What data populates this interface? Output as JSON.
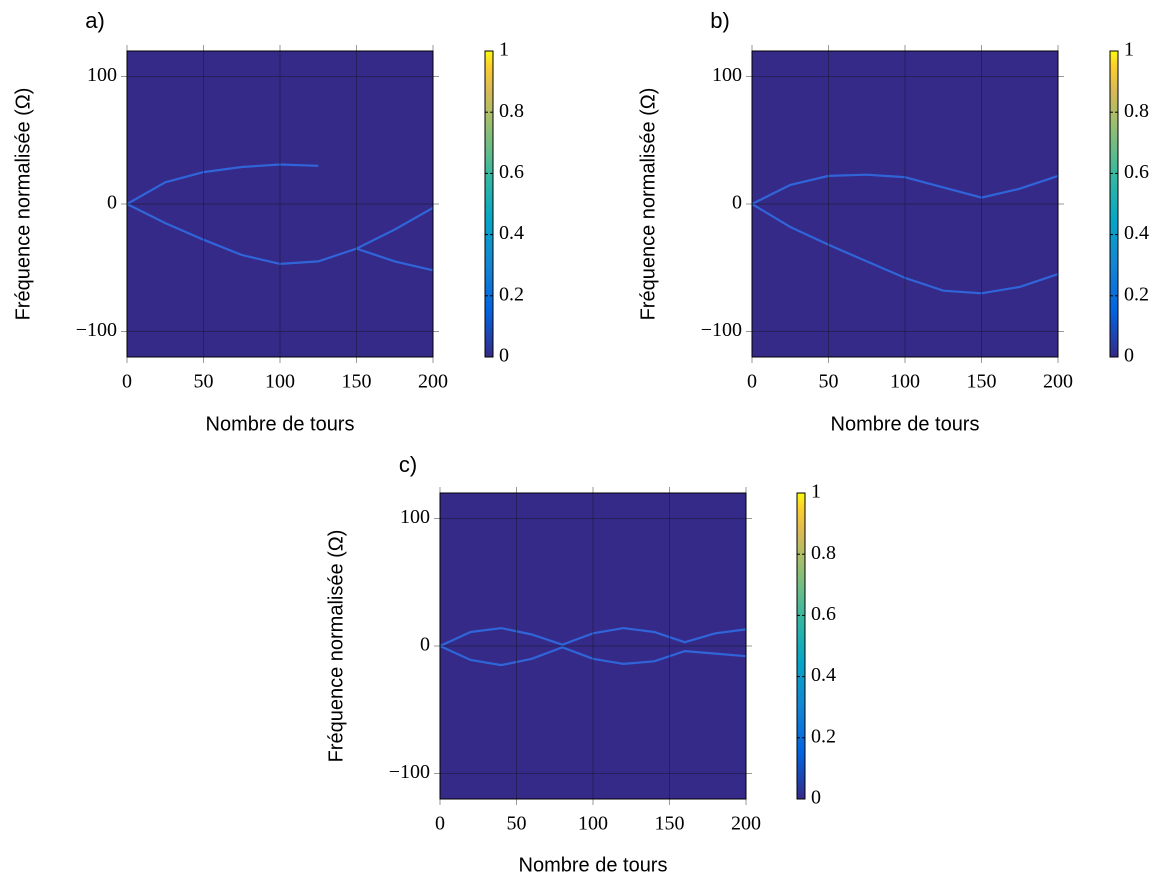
{
  "chart_data": [
    {
      "type": "heatmap",
      "label": "a)",
      "xlabel": "Nombre de tours",
      "ylabel": "Fréquence normalisée (Ω)",
      "xlim": [
        0,
        200
      ],
      "ylim": [
        -120,
        120
      ],
      "xticks": [
        0,
        50,
        100,
        150,
        200
      ],
      "yticks": [
        {
          "value": -100,
          "label": "−100"
        },
        0,
        100
      ],
      "grid": true,
      "background": "#352a87",
      "colorbar": {
        "lim": [
          0,
          1
        ],
        "ticks": [
          0,
          0.2,
          0.4,
          0.6,
          0.8,
          1
        ]
      },
      "x": [
        0,
        25,
        50,
        75,
        100,
        125,
        150,
        175,
        200
      ],
      "series": [
        {
          "color": "#2f6fe8",
          "values": [
            0,
            17,
            25,
            29,
            31,
            30,
            null,
            null,
            null
          ]
        },
        {
          "color": "#2f6fe8",
          "values": [
            0,
            -15,
            -28,
            -40,
            -47,
            -45,
            -35,
            -45,
            -52
          ]
        },
        {
          "color": "#2f6fe8",
          "values": [
            null,
            null,
            null,
            null,
            null,
            null,
            -35,
            -20,
            -3
          ]
        }
      ]
    },
    {
      "type": "heatmap",
      "label": "b)",
      "xlabel": "Nombre de tours",
      "ylabel": "Fréquence normalisée (Ω)",
      "xlim": [
        0,
        200
      ],
      "ylim": [
        -120,
        120
      ],
      "xticks": [
        0,
        50,
        100,
        150,
        200
      ],
      "yticks": [
        {
          "value": -100,
          "label": "−100"
        },
        0,
        100
      ],
      "grid": true,
      "background": "#352a87",
      "colorbar": {
        "lim": [
          0,
          1
        ],
        "ticks": [
          0,
          0.2,
          0.4,
          0.6,
          0.8,
          1
        ]
      },
      "x": [
        0,
        25,
        50,
        75,
        100,
        125,
        150,
        175,
        200
      ],
      "series": [
        {
          "color": "#2f6fe8",
          "values": [
            0,
            15,
            22,
            23,
            21,
            13,
            5,
            12,
            22
          ]
        },
        {
          "color": "#2f6fe8",
          "values": [
            0,
            -18,
            -32,
            -45,
            -58,
            -68,
            -70,
            -65,
            -55
          ]
        }
      ]
    },
    {
      "type": "heatmap",
      "label": "c)",
      "xlabel": "Nombre de tours",
      "ylabel": "Fréquence normalisée (Ω)",
      "xlim": [
        0,
        200
      ],
      "ylim": [
        -120,
        120
      ],
      "xticks": [
        0,
        50,
        100,
        150,
        200
      ],
      "yticks": [
        {
          "value": -100,
          "label": "−100"
        },
        0,
        100
      ],
      "grid": true,
      "background": "#352a87",
      "colorbar": {
        "lim": [
          0,
          1
        ],
        "ticks": [
          0,
          0.2,
          0.4,
          0.6,
          0.8,
          1
        ]
      },
      "x": [
        0,
        20,
        40,
        60,
        80,
        100,
        120,
        140,
        160,
        180,
        200
      ],
      "series": [
        {
          "color": "#2f6fe8",
          "values": [
            0,
            11,
            14,
            9,
            1,
            10,
            14,
            11,
            3,
            10,
            13
          ]
        },
        {
          "color": "#2f6fe8",
          "values": [
            0,
            -11,
            -15,
            -10,
            -1,
            -10,
            -14,
            -12,
            -4,
            -6,
            -8
          ]
        }
      ]
    }
  ]
}
